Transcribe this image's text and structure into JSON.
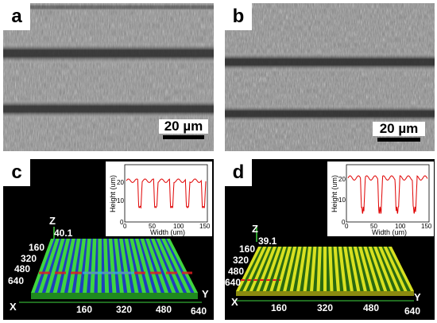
{
  "panels": {
    "a": {
      "label": "a",
      "scale_bar": "20 µm"
    },
    "b": {
      "label": "b",
      "scale_bar": "20 µm"
    },
    "c": {
      "label": "c",
      "z_axis": "Z",
      "z_value": "40.1",
      "depth_ticks": [
        "160",
        "320",
        "480",
        "640"
      ],
      "x_axis": "X",
      "y_axis": "Y",
      "width_ticks": [
        "160",
        "320",
        "480",
        "640"
      ],
      "inset": {
        "ylabel": "Height (um)",
        "xlabel": "Width (um)",
        "yticks": [
          "0",
          "10",
          "20"
        ],
        "xticks": [
          "0",
          "50",
          "100",
          "150"
        ]
      }
    },
    "d": {
      "label": "d",
      "z_axis": "Z",
      "z_value": "39.1",
      "depth_ticks": [
        "160",
        "320",
        "480",
        "640"
      ],
      "x_axis": "X",
      "y_axis": "Y",
      "width_ticks": [
        "160",
        "320",
        "480",
        "640"
      ],
      "inset": {
        "ylabel": "Height (um)",
        "xlabel": "Width (um)",
        "yticks": [
          "0",
          "10",
          "20"
        ],
        "xticks": [
          "0",
          "50",
          "100",
          "150"
        ]
      }
    }
  },
  "colors": {
    "profile_line": "#e00000",
    "surface_green": "#3fd63f",
    "groove_blue": "#1f3fbf",
    "surface_yellow": "#d8e020"
  }
}
